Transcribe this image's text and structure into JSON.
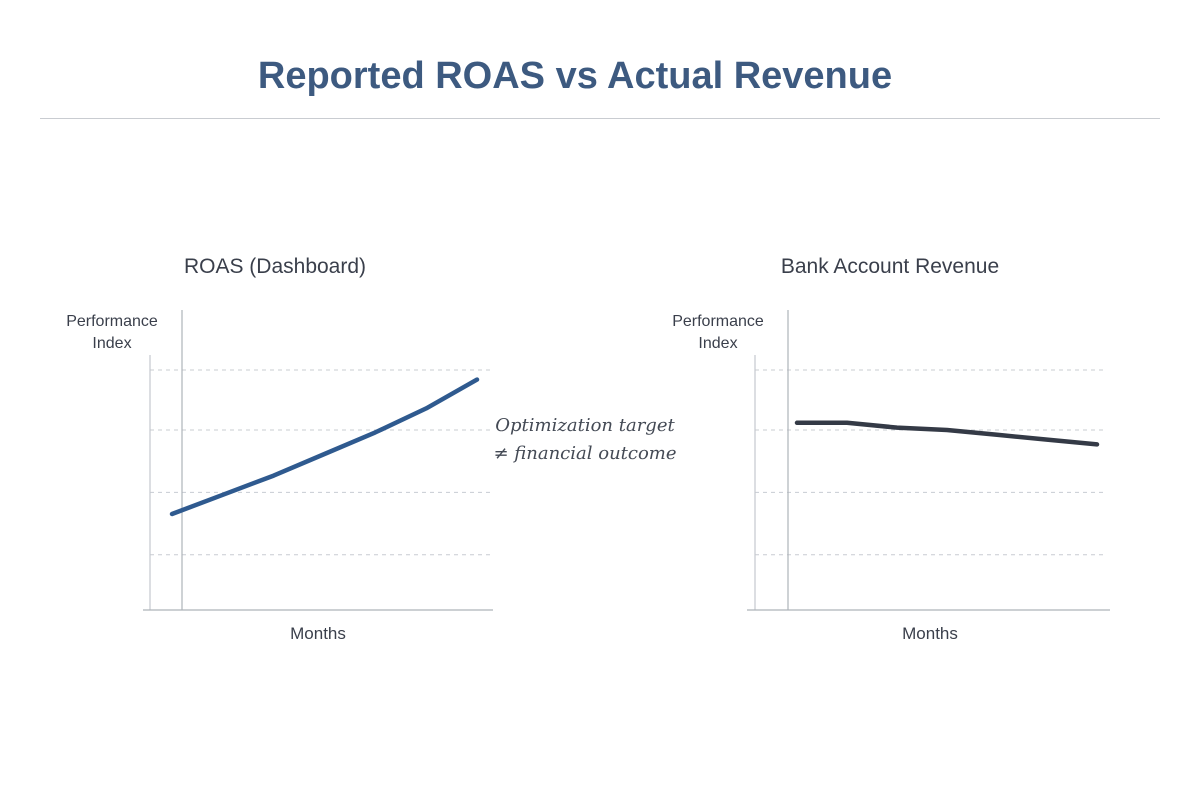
{
  "title": "Reported ROAS vs Actual Revenue",
  "annotation": {
    "line1": "Optimization target",
    "line2": "≠ financial outcome"
  },
  "chart_data": [
    {
      "type": "line",
      "title": "ROAS (Dashboard)",
      "xlabel": "Months",
      "ylabel": [
        "Performance",
        "Index"
      ],
      "ylim": [
        0,
        100
      ],
      "grid": true,
      "line_color": "#2f5a8f",
      "series": [
        {
          "name": "ROAS",
          "x": [
            0,
            1,
            2,
            3,
            4,
            5,
            6
          ],
          "values": [
            40,
            48,
            56,
            65,
            74,
            84,
            96
          ]
        }
      ]
    },
    {
      "type": "line",
      "title": "Bank Account Revenue",
      "xlabel": "Months",
      "ylabel": [
        "Performance",
        "Index"
      ],
      "ylim": [
        0,
        100
      ],
      "grid": true,
      "line_color": "#343a46",
      "series": [
        {
          "name": "Revenue",
          "x": [
            0,
            1,
            2,
            3,
            4,
            5,
            6
          ],
          "values": [
            78,
            78,
            76,
            75,
            73,
            71,
            69
          ]
        }
      ]
    }
  ]
}
